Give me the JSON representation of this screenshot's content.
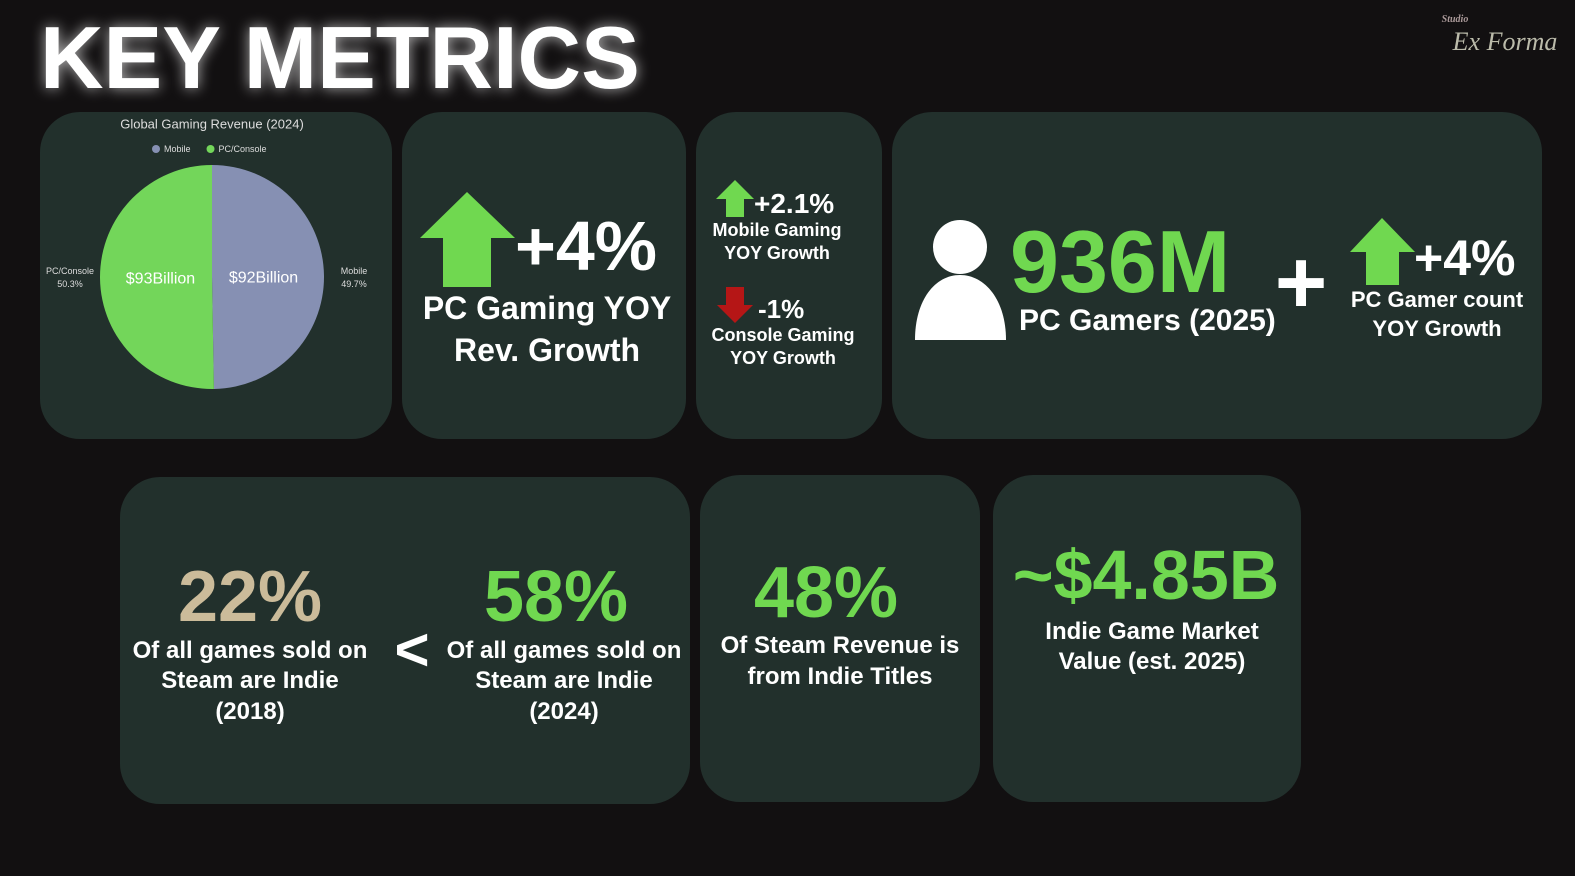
{
  "title": "KEY METRICS",
  "logo": {
    "small": "Studio",
    "main": "Ex Forma"
  },
  "pie_card": {
    "chart_data": {
      "type": "pie",
      "title": "Global Gaming Revenue (2024)",
      "categories": [
        "Mobile",
        "PC/Console"
      ],
      "values": [
        92,
        93
      ],
      "value_labels": [
        "$92Billion",
        "$93Billion"
      ],
      "percent_labels": [
        "49.7%",
        "50.3%"
      ],
      "colors": [
        "#8690b3",
        "#73d65a"
      ],
      "legend": "top"
    }
  },
  "pc_growth": {
    "value": "+4%",
    "lines": [
      "PC Gaming YOY",
      "Rev. Growth"
    ]
  },
  "split_growth": {
    "mobile": {
      "value": "+2.1%",
      "lines": [
        "Mobile Gaming",
        "YOY Growth"
      ]
    },
    "console": {
      "value": "-1%",
      "lines": [
        "Console Gaming",
        "YOY Growth"
      ]
    }
  },
  "pc_gamers": {
    "value": "936M",
    "label": "PC Gamers (2025)",
    "plus": "+",
    "growth": "+4%",
    "lines": [
      "PC Gamer count",
      "YOY Growth"
    ]
  },
  "indie_share": {
    "left": {
      "value": "22%",
      "lines": [
        "Of all games sold on",
        "Steam are Indie",
        "(2018)"
      ]
    },
    "comparator": "<",
    "right": {
      "value": "58%",
      "lines": [
        "Of all games sold on",
        "Steam are Indie",
        "(2024)"
      ]
    }
  },
  "indie_revenue": {
    "value": "48%",
    "lines": [
      "Of Steam Revenue is",
      "from Indie Titles"
    ]
  },
  "market_value": {
    "value": "~$4.85B",
    "lines": [
      "Indie Game Market",
      "Value (est. 2025)"
    ]
  }
}
